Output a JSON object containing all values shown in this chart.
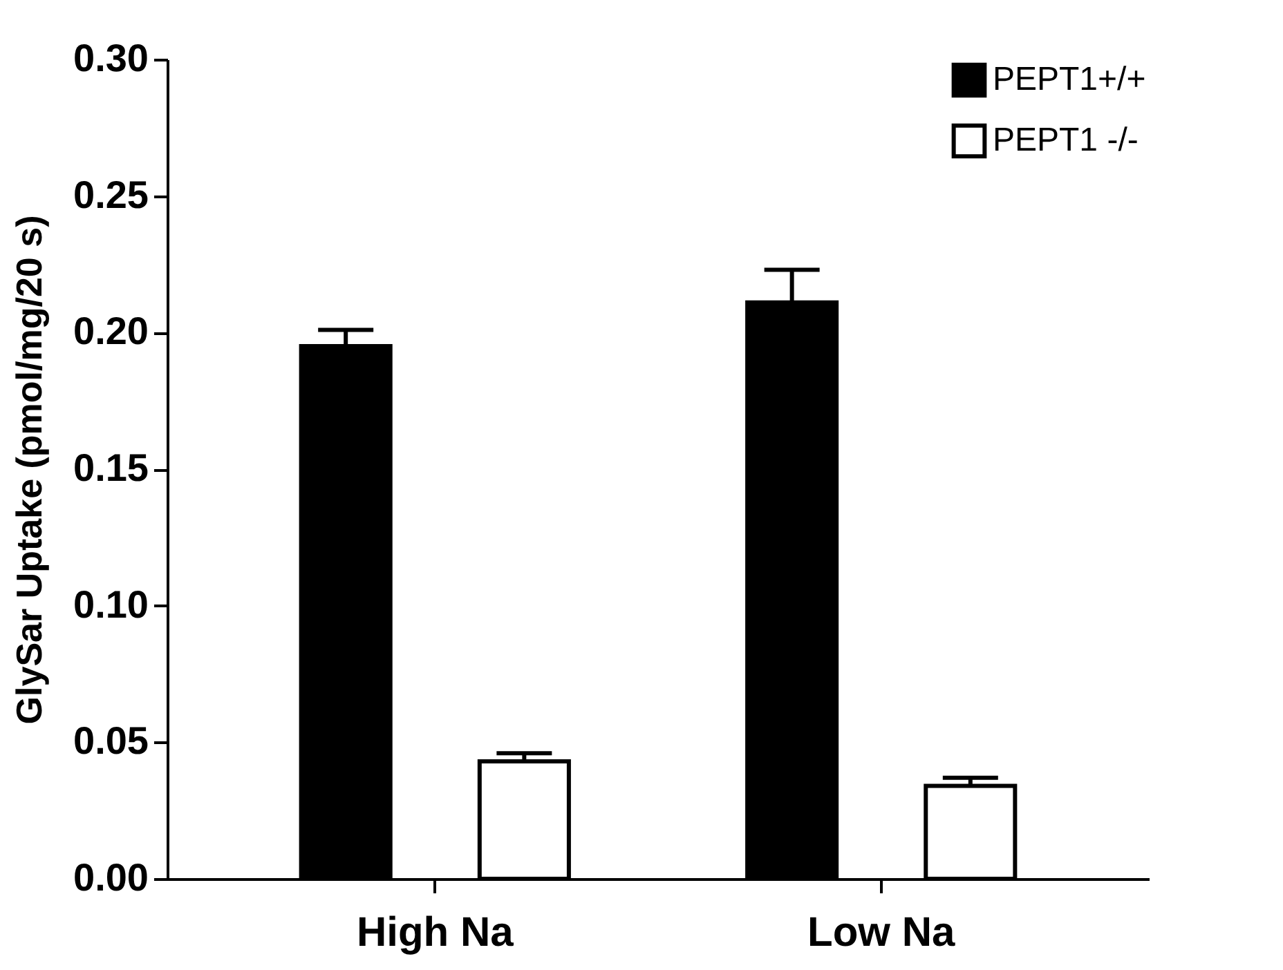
{
  "chart_data": {
    "type": "bar",
    "ylabel": "GlySar Uptake (pmol/mg/20 s)",
    "categories": [
      "High Na",
      "Low Na"
    ],
    "series": [
      {
        "name": "PEPT1+/+",
        "color": "#000000",
        "values": [
          0.195,
          0.211
        ],
        "errors": [
          [
            0.195,
            0.201
          ],
          [
            0.211,
            0.223
          ]
        ]
      },
      {
        "name": "PEPT1 -/-",
        "color": "#ffffff",
        "values": [
          0.043,
          0.034
        ],
        "errors": [
          [
            0.043,
            0.046
          ],
          [
            0.034,
            0.037
          ]
        ]
      }
    ],
    "ylim": [
      0,
      0.3
    ],
    "yticks": [
      {
        "value": 0,
        "label": "0.00"
      },
      {
        "value": 0.05,
        "label": "0.05"
      },
      {
        "value": 0.1,
        "label": "0.10"
      },
      {
        "value": 0.15,
        "label": "0.15"
      },
      {
        "value": 0.2,
        "label": "0.20"
      },
      {
        "value": 0.25,
        "label": "0.25"
      },
      {
        "value": 0.3,
        "label": "0.30"
      }
    ],
    "grid": false,
    "legend": "top right"
  }
}
